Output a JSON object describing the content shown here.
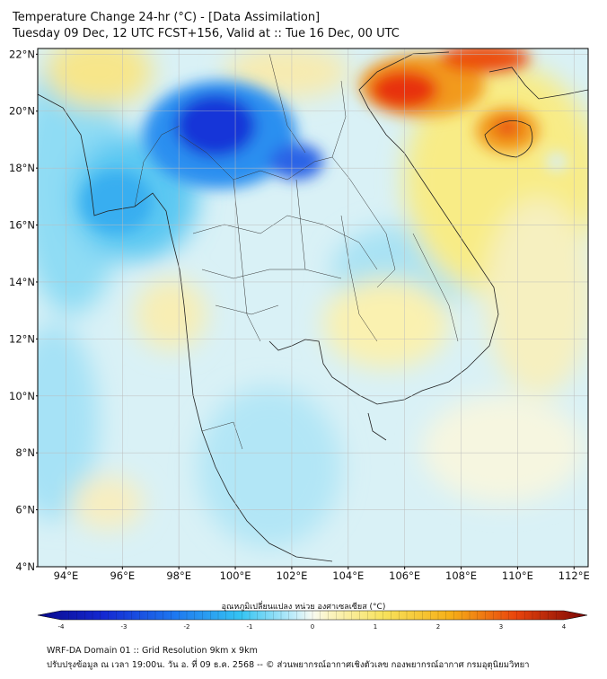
{
  "header": {
    "title_line1": "Temperature Change 24-hr (°C) - [Data Assimilation]",
    "title_line2": "Tuesday 09 Dec, 12 UTC FCST+156, Valid at :: Tue 16 Dec, 00 UTC"
  },
  "map": {
    "lat_labels": [
      "22°N",
      "20°N",
      "18°N",
      "16°N",
      "14°N",
      "12°N",
      "10°N",
      "8°N",
      "6°N",
      "4°N"
    ],
    "lat_values": [
      22,
      20,
      18,
      16,
      14,
      12,
      10,
      8,
      6,
      4
    ],
    "lon_labels": [
      "94°E",
      "96°E",
      "98°E",
      "100°E",
      "102°E",
      "104°E",
      "106°E",
      "108°E",
      "110°E",
      "112°E"
    ],
    "lon_values": [
      94,
      96,
      98,
      100,
      102,
      104,
      106,
      108,
      110,
      112
    ],
    "lon_range": [
      93,
      112.5
    ],
    "lat_range": [
      4,
      22.2
    ],
    "field_description_regions": [
      {
        "lon": 99.6,
        "lat": 19.7,
        "value": -3.2
      },
      {
        "lon": 102.0,
        "lat": 18.3,
        "value": -2.4
      },
      {
        "lon": 96.0,
        "lat": 17.5,
        "value": -1.6
      },
      {
        "lon": 106.0,
        "lat": 20.6,
        "value": 3.0
      },
      {
        "lon": 109.8,
        "lat": 19.5,
        "value": 2.4
      },
      {
        "lon": 95.0,
        "lat": 20.5,
        "value": 1.0
      },
      {
        "lon": 104.5,
        "lat": 12.3,
        "value": 0.7
      },
      {
        "lon": 108.5,
        "lat": 12.0,
        "value": 0.6
      },
      {
        "lon": 93.8,
        "lat": 9.5,
        "value": -1.0
      },
      {
        "lon": 101.5,
        "lat": 6.5,
        "value": -0.7
      }
    ]
  },
  "colorbar": {
    "title": "อุณหภูมิเปลี่ยนแปลง หน่วย องศาเซลเซียส (°C)",
    "ticks": [
      "-4",
      "-3",
      "-2",
      "-1",
      "0",
      "1",
      "2",
      "3",
      "4"
    ],
    "min": -4,
    "max": 4
  },
  "footer": {
    "line1": "WRF-DA Domain 01 :: Grid Resolution 9km x 9km",
    "line2": "ปรับปรุงข้อมูล ณ เวลา 19:00น. วัน อ. ที่ 09 ธ.ค. 2568 -- © ส่วนพยากรณ์อากาศเชิงตัวเลข กองพยากรณ์อากาศ กรมอุตุนิยมวิทยา"
  },
  "colors": {
    "deep_cold": "#0a1fb4",
    "cold": "#2aaef0",
    "neutral": "#f4f8f0",
    "warm": "#f6e060",
    "hot": "#e82a0a"
  }
}
